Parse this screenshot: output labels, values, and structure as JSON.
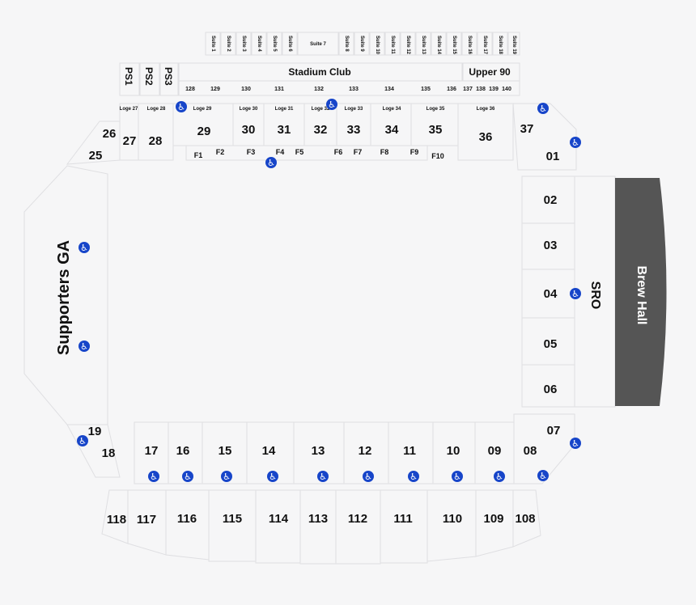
{
  "areas": {
    "supporters": "Supporters GA",
    "sro": "SRO",
    "brew_hall": "Brew Hall",
    "stadium_club": "Stadium Club",
    "upper_90": "Upper 90"
  },
  "suites": [
    "Suite 1",
    "Suite 2",
    "Suite 3",
    "Suite 4",
    "Suite 5",
    "Suite 6",
    "Suite 7",
    "Suite 8",
    "Suite 9",
    "Suite 10",
    "Suite 11",
    "Suite 12",
    "Suite 13",
    "Suite 14",
    "Suite 15",
    "Suite 16",
    "Suite 17",
    "Suite 18",
    "Suite 19"
  ],
  "party_suites": [
    "PS1",
    "PS2",
    "PS3"
  ],
  "club_sections": [
    "128",
    "129",
    "130",
    "131",
    "132",
    "133",
    "134",
    "135",
    "136",
    "137",
    "138",
    "139",
    "140"
  ],
  "loges": [
    "Loge 27",
    "Loge 28",
    "Loge 29",
    "Loge 30",
    "Loge 31",
    "Loge 32",
    "Loge 33",
    "Loge 34",
    "Loge 35",
    "Loge 36"
  ],
  "north_sections": [
    "26",
    "27",
    "28",
    "29",
    "30",
    "31",
    "32",
    "33",
    "34",
    "35",
    "36",
    "37"
  ],
  "field_seats": [
    "F1",
    "F2",
    "F3",
    "F4",
    "F5",
    "F6",
    "F7",
    "F8",
    "F9",
    "F10"
  ],
  "corner_sections": [
    "25",
    "01",
    "19",
    "18",
    "07",
    "08"
  ],
  "east_sections": [
    "02",
    "03",
    "04",
    "05",
    "06"
  ],
  "south_sections": [
    "17",
    "16",
    "15",
    "14",
    "13",
    "12",
    "11",
    "10",
    "09"
  ],
  "south_upper_sections": [
    "118",
    "117",
    "116",
    "115",
    "114",
    "113",
    "112",
    "111",
    "110",
    "109",
    "108"
  ],
  "accessible_icon": "wheelchair-icon",
  "colors": {
    "accessible": "#1745c9",
    "brew_hall": "#555555",
    "background": "#f6f6f7"
  }
}
